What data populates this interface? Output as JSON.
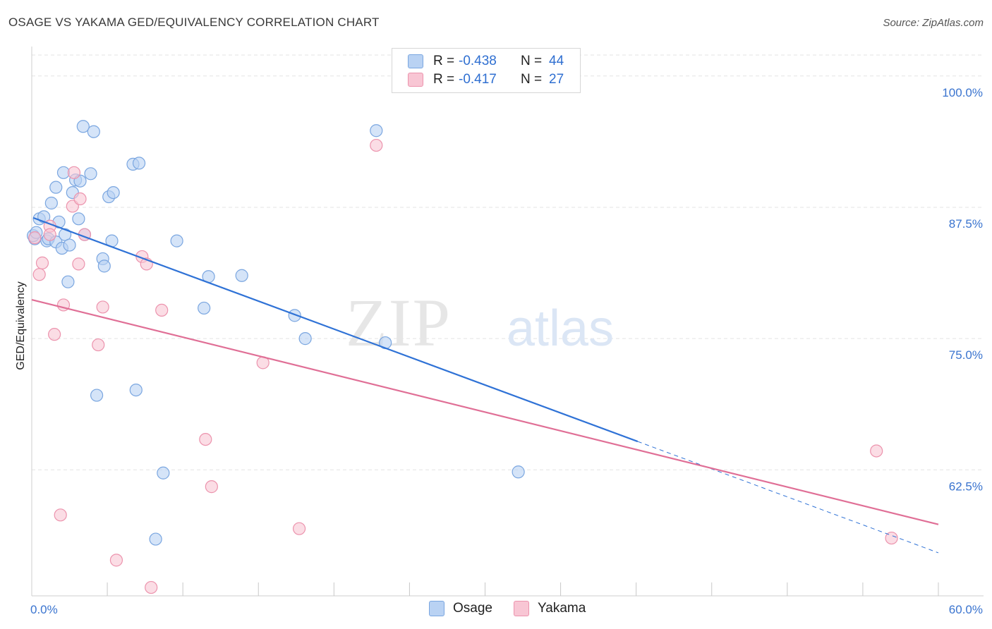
{
  "title": "OSAGE VS YAKAMA GED/EQUIVALENCY CORRELATION CHART",
  "source": "Source: ZipAtlas.com",
  "watermark": {
    "zip": "ZIP",
    "atlas": "atlas"
  },
  "legend_top": [
    {
      "r_label": "R =",
      "r_value": "-0.438",
      "n_label": "N =",
      "n_value": "44"
    },
    {
      "r_label": "R =",
      "r_value": "-0.417",
      "n_label": "N =",
      "n_value": "27"
    }
  ],
  "legend_bottom": [
    "Osage",
    "Yakama"
  ],
  "colors": {
    "osage_fill": "#b9d2f3",
    "osage_stroke": "#7aa6e0",
    "osage_line": "#2f72d6",
    "yakama_fill": "#f8c6d4",
    "yakama_stroke": "#ec93ad",
    "yakama_line": "#e06f96",
    "tick_text": "#3a74cf",
    "grid": "#e3e3e3"
  },
  "chart_data": {
    "type": "scatter",
    "title": "OSAGE VS YAKAMA GED/EQUIVALENCY CORRELATION CHART",
    "xlabel": "",
    "ylabel": "GED/Equivalency",
    "xlim": [
      0,
      60
    ],
    "ylim": [
      50.5,
      102
    ],
    "x_tick_labels": [
      {
        "value": 0,
        "label": "0.0%"
      },
      {
        "value": 60,
        "label": "60.0%"
      }
    ],
    "y_ticks": [
      {
        "value": 100,
        "label": "100.0%"
      },
      {
        "value": 87.5,
        "label": "87.5%"
      },
      {
        "value": 75,
        "label": "75.0%"
      },
      {
        "value": 62.5,
        "label": "62.5%"
      }
    ],
    "grid": true,
    "legend_position": "bottom",
    "series": [
      {
        "name": "Osage",
        "points": [
          [
            0.2,
            84.5
          ],
          [
            0.5,
            86.4
          ],
          [
            0.8,
            86.6
          ],
          [
            1.0,
            84.3
          ],
          [
            1.1,
            84.5
          ],
          [
            1.3,
            87.9
          ],
          [
            1.6,
            84.2
          ],
          [
            1.6,
            89.4
          ],
          [
            1.8,
            86.1
          ],
          [
            2.0,
            83.6
          ],
          [
            2.1,
            90.8
          ],
          [
            2.2,
            84.9
          ],
          [
            2.4,
            80.4
          ],
          [
            2.5,
            83.9
          ],
          [
            2.7,
            88.9
          ],
          [
            2.9,
            90.1
          ],
          [
            3.1,
            86.4
          ],
          [
            3.2,
            90.0
          ],
          [
            3.4,
            95.2
          ],
          [
            3.5,
            84.9
          ],
          [
            3.9,
            90.7
          ],
          [
            4.1,
            94.7
          ],
          [
            4.3,
            69.6
          ],
          [
            4.7,
            82.6
          ],
          [
            4.8,
            81.9
          ],
          [
            5.1,
            88.5
          ],
          [
            5.3,
            84.3
          ],
          [
            5.4,
            88.9
          ],
          [
            6.7,
            91.6
          ],
          [
            7.1,
            91.7
          ],
          [
            6.9,
            70.1
          ],
          [
            8.7,
            62.2
          ],
          [
            8.2,
            55.9
          ],
          [
            9.6,
            84.3
          ],
          [
            11.4,
            77.9
          ],
          [
            11.7,
            80.9
          ],
          [
            13.9,
            81.0
          ],
          [
            17.4,
            77.2
          ],
          [
            18.1,
            75.0
          ],
          [
            22.8,
            94.8
          ],
          [
            23.4,
            74.6
          ],
          [
            32.2,
            62.3
          ],
          [
            0.1,
            84.8
          ],
          [
            0.3,
            85.1
          ]
        ],
        "trend": {
          "x": [
            0.1,
            40.1
          ],
          "y": [
            86.5,
            65.2
          ],
          "dashed_extension_to": [
            60.0,
            54.6
          ]
        }
      },
      {
        "name": "Yakama",
        "points": [
          [
            0.2,
            84.6
          ],
          [
            0.5,
            81.1
          ],
          [
            0.7,
            82.2
          ],
          [
            1.2,
            85.7
          ],
          [
            1.2,
            84.9
          ],
          [
            1.5,
            75.4
          ],
          [
            1.9,
            58.2
          ],
          [
            2.1,
            78.2
          ],
          [
            2.7,
            87.6
          ],
          [
            2.8,
            90.8
          ],
          [
            3.1,
            82.1
          ],
          [
            3.2,
            88.3
          ],
          [
            3.5,
            84.9
          ],
          [
            4.4,
            74.4
          ],
          [
            4.7,
            78.0
          ],
          [
            5.6,
            53.9
          ],
          [
            7.3,
            82.8
          ],
          [
            7.6,
            82.1
          ],
          [
            7.9,
            51.3
          ],
          [
            8.6,
            77.7
          ],
          [
            11.5,
            65.4
          ],
          [
            11.9,
            60.9
          ],
          [
            15.3,
            72.7
          ],
          [
            17.7,
            56.9
          ],
          [
            22.8,
            93.4
          ],
          [
            55.9,
            64.3
          ],
          [
            56.9,
            56.0
          ]
        ],
        "trend": {
          "x": [
            0.0,
            60.0
          ],
          "y": [
            78.7,
            57.3
          ]
        }
      }
    ]
  }
}
